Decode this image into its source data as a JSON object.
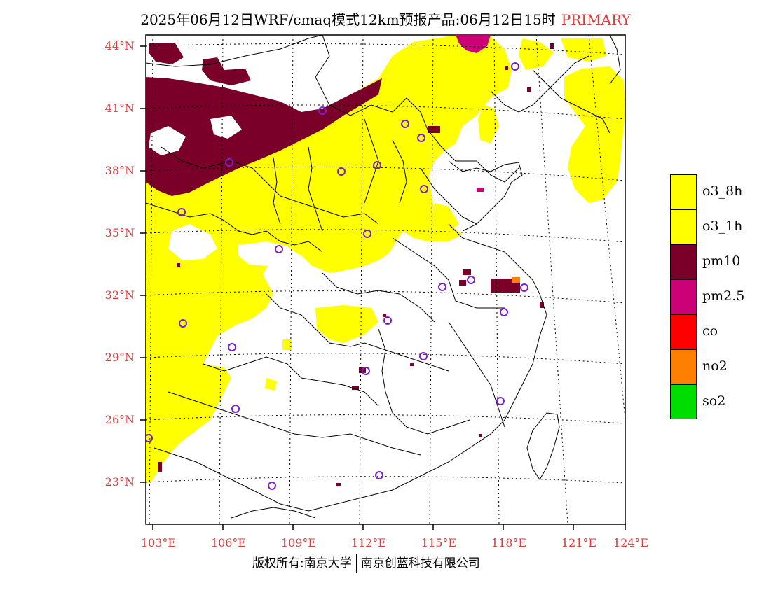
{
  "title": {
    "main": "2025年06月12日WRF/cmaq模式12km预报产品:06月12日15时",
    "tag": "PRIMARY"
  },
  "axes": {
    "lat_labels": [
      "44°N",
      "41°N",
      "38°N",
      "35°N",
      "32°N",
      "29°N",
      "26°N",
      "23°N"
    ],
    "lon_labels": [
      "103°E",
      "106°E",
      "109°E",
      "112°E",
      "115°E",
      "118°E",
      "121°E",
      "124°E"
    ]
  },
  "legend": [
    {
      "label": "o3_8h",
      "color": "#ffff00"
    },
    {
      "label": "o3_1h",
      "color": "#ffff00"
    },
    {
      "label": "pm10",
      "color": "#7a0029"
    },
    {
      "label": "pm2.5",
      "color": "#cc0077"
    },
    {
      "label": "co",
      "color": "#ff0000"
    },
    {
      "label": "no2",
      "color": "#ff7f00"
    },
    {
      "label": "so2",
      "color": "#00dd00"
    }
  ],
  "copyright": {
    "left": "版权所有:南京大学",
    "right": "南京创蓝科技有限公司"
  },
  "colors": {
    "o3": "#ffff00",
    "pm10": "#7a0029",
    "pm25": "#cc0077",
    "station": "#7a1fd0",
    "label_red": "#e23a3a"
  }
}
